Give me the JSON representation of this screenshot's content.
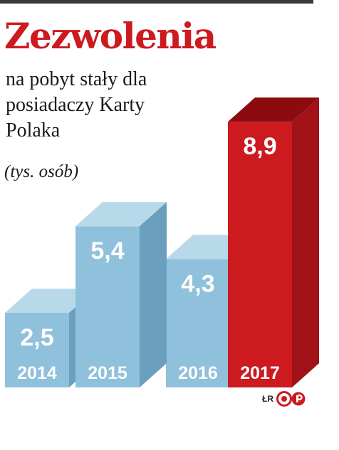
{
  "header": {
    "title": "Zezwolenia",
    "subtitle": "na pobyt stały dla posiadaczy Karty Polaka",
    "unit": "(tys. osób)"
  },
  "credit": {
    "initials": "ŁR",
    "logo_icon": "cp-logo-icon",
    "logo_color": "#cc1a1f"
  },
  "colors": {
    "title": "#cc1a1f",
    "bar_blue_front": "#8fc1dc",
    "bar_blue_top": "#b8d9ea",
    "bar_blue_side": "#6a9fbd",
    "bar_red_front": "#cc1a1f",
    "bar_red_top": "#8c0b0f",
    "bar_red_side": "#a01217",
    "label": "#ffffff"
  },
  "chart_data": {
    "type": "bar",
    "style": "3d-column",
    "categories": [
      "2014",
      "2015",
      "2016",
      "2017"
    ],
    "values": [
      2.5,
      5.4,
      4.3,
      8.9
    ],
    "value_labels": [
      "2,5",
      "5,4",
      "4,3",
      "8,9"
    ],
    "highlight": "2017",
    "ylim": [
      0,
      9.5
    ],
    "grid": false,
    "legend": "none"
  }
}
